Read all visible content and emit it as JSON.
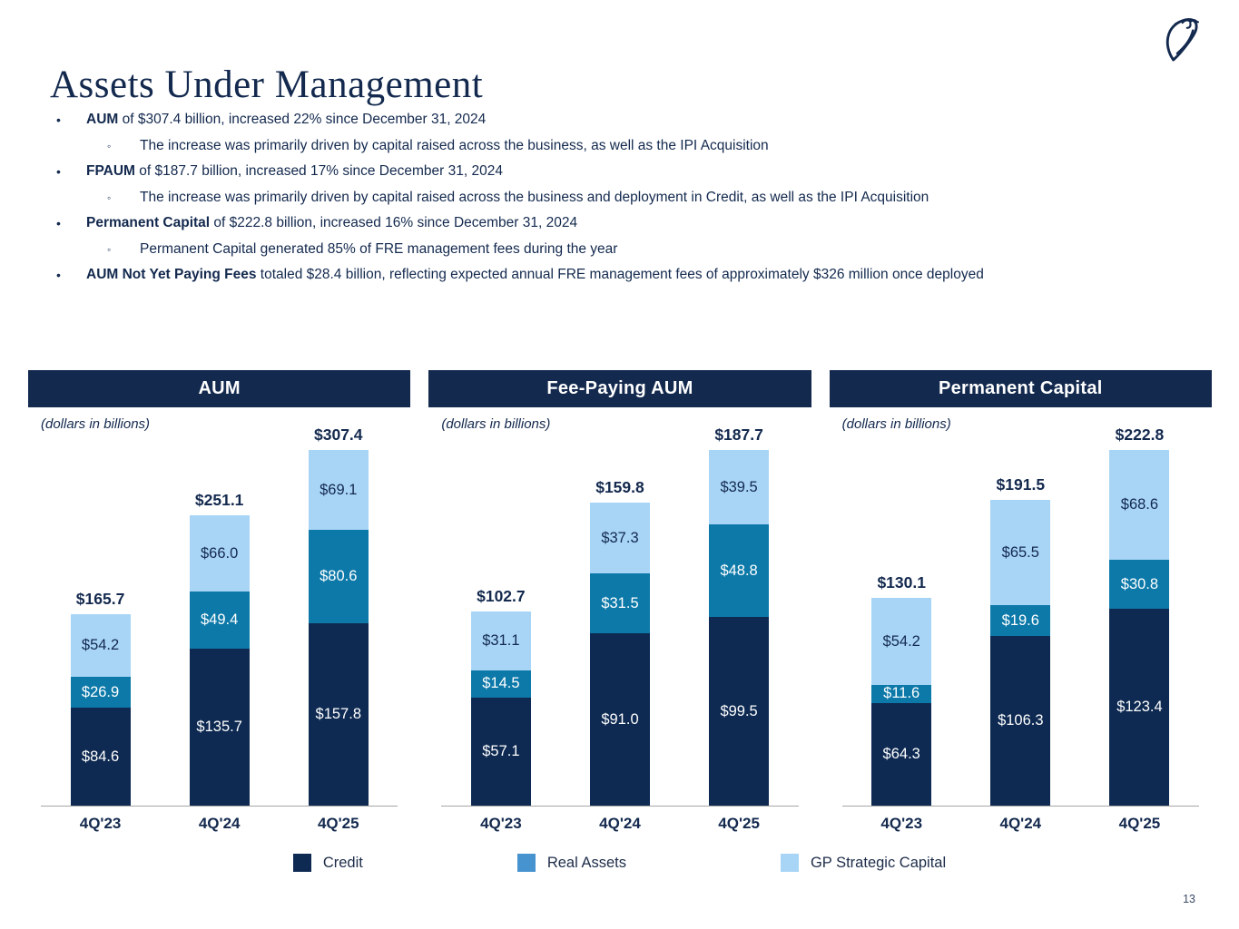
{
  "page": {
    "title": "Assets Under Management",
    "page_number": "13"
  },
  "colors": {
    "navy": "#13294e",
    "credit": "#0e2a52",
    "real_assets": "#0d79a9",
    "gp_strategic": "#a8d5f6",
    "legend_real_assets": "#4793d0",
    "axis_gray": "#a6a6a6"
  },
  "bullets": {
    "b1_bold": "AUM",
    "b1_rest": " of $307.4 billion, increased 22% since December 31, 2024",
    "b1_sub": "The increase was primarily driven by capital raised across the business, as well as the IPI Acquisition",
    "b2_bold": "FPAUM",
    "b2_rest": " of $187.7 billion, increased 17% since December 31, 2024",
    "b2_sub": "The increase was primarily driven by capital raised across the business and deployment in Credit, as well as the IPI Acquisition",
    "b3_bold": "Permanent Capital",
    "b3_rest": " of $222.8 billion, increased 16% since December 31, 2024",
    "b3_sub": "Permanent Capital generated 85% of FRE management fees during the year",
    "b4_bold": "AUM Not Yet Paying Fees",
    "b4_rest": " totaled $28.4 billion, reflecting expected annual FRE management fees of approximately $326 million once deployed"
  },
  "chart_data": [
    {
      "type": "bar",
      "stacked": true,
      "title": "AUM",
      "note": "(dollars in billions)",
      "categories": [
        "4Q'23",
        "4Q'24",
        "4Q'25"
      ],
      "series": [
        {
          "name": "Credit",
          "color": "#0e2a52",
          "text_color": "#ffffff",
          "values": [
            84.6,
            135.7,
            157.8
          ],
          "labels": [
            "$84.6",
            "$135.7",
            "$157.8"
          ]
        },
        {
          "name": "Real Assets",
          "color": "#0d79a9",
          "text_color": "#ffffff",
          "values": [
            26.9,
            49.4,
            80.6
          ],
          "labels": [
            "$26.9",
            "$49.4",
            "$80.6"
          ]
        },
        {
          "name": "GP Strategic Capital",
          "color": "#a8d5f6",
          "text_color": "#13294e",
          "values": [
            54.2,
            66.0,
            69.1
          ],
          "labels": [
            "$54.2",
            "$66.0",
            "$69.1"
          ]
        }
      ],
      "totals": [
        165.7,
        251.1,
        307.4
      ],
      "total_labels": [
        "$165.7",
        "$251.1",
        "$307.4"
      ],
      "legend_position": "bottom",
      "grid": false
    },
    {
      "type": "bar",
      "stacked": true,
      "title": "Fee-Paying AUM",
      "note": "(dollars in billions)",
      "categories": [
        "4Q'23",
        "4Q'24",
        "4Q'25"
      ],
      "series": [
        {
          "name": "Credit",
          "color": "#0e2a52",
          "text_color": "#ffffff",
          "values": [
            57.1,
            91.0,
            99.5
          ],
          "labels": [
            "$57.1",
            "$91.0",
            "$99.5"
          ]
        },
        {
          "name": "Real Assets",
          "color": "#0d79a9",
          "text_color": "#ffffff",
          "values": [
            14.5,
            31.5,
            48.8
          ],
          "labels": [
            "$14.5",
            "$31.5",
            "$48.8"
          ]
        },
        {
          "name": "GP Strategic Capital",
          "color": "#a8d5f6",
          "text_color": "#13294e",
          "values": [
            31.1,
            37.3,
            39.5
          ],
          "labels": [
            "$31.1",
            "$37.3",
            "$39.5"
          ]
        }
      ],
      "totals": [
        102.7,
        159.8,
        187.7
      ],
      "total_labels": [
        "$102.7",
        "$159.8",
        "$187.7"
      ],
      "legend_position": "bottom",
      "grid": false
    },
    {
      "type": "bar",
      "stacked": true,
      "title": "Permanent Capital",
      "note": "(dollars in billions)",
      "categories": [
        "4Q'23",
        "4Q'24",
        "4Q'25"
      ],
      "series": [
        {
          "name": "Credit",
          "color": "#0e2a52",
          "text_color": "#ffffff",
          "values": [
            64.3,
            106.3,
            123.4
          ],
          "labels": [
            "$64.3",
            "$106.3",
            "$123.4"
          ]
        },
        {
          "name": "Real Assets",
          "color": "#0d79a9",
          "text_color": "#ffffff",
          "values": [
            11.6,
            19.6,
            30.8
          ],
          "labels": [
            "$11.6",
            "$19.6",
            "$30.8"
          ]
        },
        {
          "name": "GP Strategic Capital",
          "color": "#a8d5f6",
          "text_color": "#13294e",
          "values": [
            54.2,
            65.5,
            68.6
          ],
          "labels": [
            "$54.2",
            "$65.5",
            "$68.6"
          ]
        }
      ],
      "totals": [
        130.1,
        191.5,
        222.8
      ],
      "total_labels": [
        "$130.1",
        "$191.5",
        "$222.8"
      ],
      "legend_position": "bottom",
      "grid": false
    }
  ],
  "legend": {
    "items": [
      {
        "label": "Credit",
        "color": "#0e2a52"
      },
      {
        "label": "Real Assets",
        "color": "#4793d0"
      },
      {
        "label": "GP Strategic Capital",
        "color": "#a8d5f6"
      }
    ]
  }
}
